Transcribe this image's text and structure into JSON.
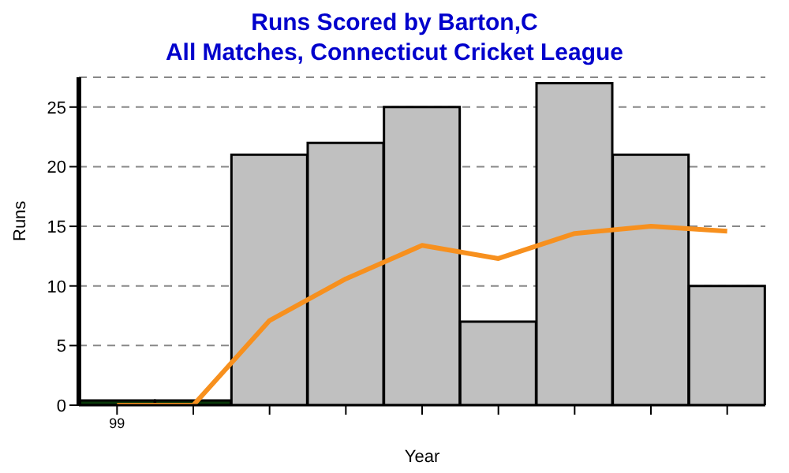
{
  "chart_data": {
    "type": "bar",
    "title": "Runs Scored by Barton,C",
    "subtitle": "All Matches, Connecticut Cricket League",
    "xlabel": "Year",
    "ylabel": "Runs",
    "categories": [
      "99",
      null,
      null,
      null,
      null,
      null,
      null,
      null,
      null
    ],
    "series": [
      {
        "values": [
          0.4,
          0.4,
          21,
          22,
          25,
          7,
          27,
          21,
          10
        ],
        "colors": [
          "#0a3a0a",
          "#0a3a0a",
          "#c0c0c0",
          "#c0c0c0",
          "#c0c0c0",
          "#c0c0c0",
          "#c0c0c0",
          "#c0c0c0",
          "#c0c0c0"
        ]
      },
      {
        "type": "line",
        "color": "#f7901e",
        "values": [
          0,
          0,
          7.1,
          10.6,
          13.4,
          12.3,
          14.4,
          15,
          14.6
        ]
      }
    ],
    "ylim": [
      0,
      27.5
    ],
    "yticks": [
      0,
      5,
      10,
      15,
      20,
      25
    ],
    "grid": "y",
    "legend": false,
    "marker": "none",
    "line_style": "solid"
  }
}
